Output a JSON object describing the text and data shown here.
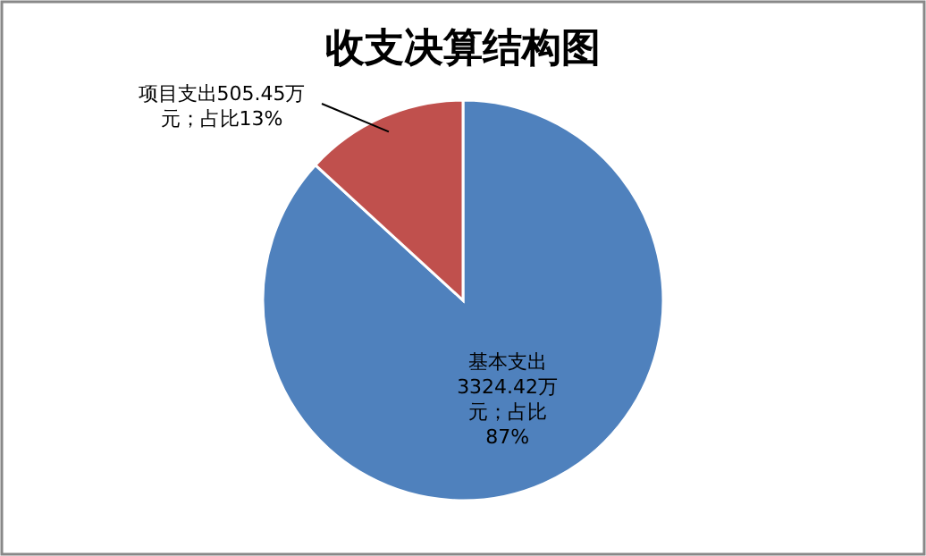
{
  "chart_data": {
    "type": "pie",
    "title": "收支决算结构图",
    "categories": [
      "基本支出",
      "项目支出"
    ],
    "values": [
      3324.42,
      505.45
    ],
    "colors": [
      "#4f81bd",
      "#c0504d"
    ],
    "value_labels": [
      "3324.42万元；占比87%",
      "505.45万元；占比13%"
    ]
  }
}
